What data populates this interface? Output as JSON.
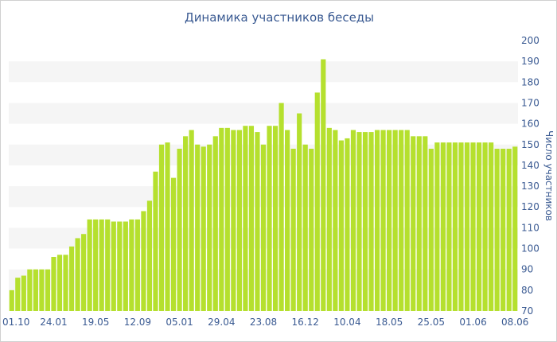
{
  "chart_data": {
    "type": "bar",
    "title": "Динамика участников беседы",
    "xlabel": "",
    "ylabel": "Число участников",
    "ylim": [
      70,
      200
    ],
    "yticks": [
      70,
      80,
      90,
      100,
      110,
      120,
      130,
      140,
      150,
      160,
      170,
      180,
      190,
      200
    ],
    "grid": "alternating horizontal bands",
    "bar_color": "#b5e02e",
    "band_color": "#f5f5f5",
    "text_color": "#3a5a92",
    "x_tick_labels": [
      {
        "label": "01.10",
        "index": 0
      },
      {
        "label": "24.01",
        "index": 7
      },
      {
        "label": "19.05",
        "index": 14
      },
      {
        "label": "12.09",
        "index": 21
      },
      {
        "label": "05.01",
        "index": 28
      },
      {
        "label": "29.04",
        "index": 35
      },
      {
        "label": "23.08",
        "index": 42
      },
      {
        "label": "16.12",
        "index": 49
      },
      {
        "label": "10.04",
        "index": 56
      },
      {
        "label": "18.05",
        "index": 63
      },
      {
        "label": "25.05",
        "index": 70
      },
      {
        "label": "01.06",
        "index": 77
      },
      {
        "label": "08.06",
        "index": 84
      }
    ],
    "values": [
      80,
      86,
      87,
      90,
      90,
      90,
      90,
      96,
      97,
      97,
      101,
      105,
      107,
      114,
      114,
      114,
      114,
      113,
      113,
      113,
      114,
      114,
      118,
      123,
      137,
      150,
      151,
      134,
      148,
      154,
      157,
      150,
      149,
      150,
      154,
      158,
      158,
      157,
      157,
      159,
      159,
      156,
      150,
      159,
      159,
      170,
      157,
      148,
      165,
      150,
      148,
      175,
      191,
      158,
      157,
      152,
      153,
      157,
      156,
      156,
      156,
      157,
      157,
      157,
      157,
      157,
      157,
      154,
      154,
      154,
      148,
      151,
      151,
      151,
      151,
      151,
      151,
      151,
      151,
      151,
      151,
      148,
      148,
      148,
      149
    ]
  }
}
